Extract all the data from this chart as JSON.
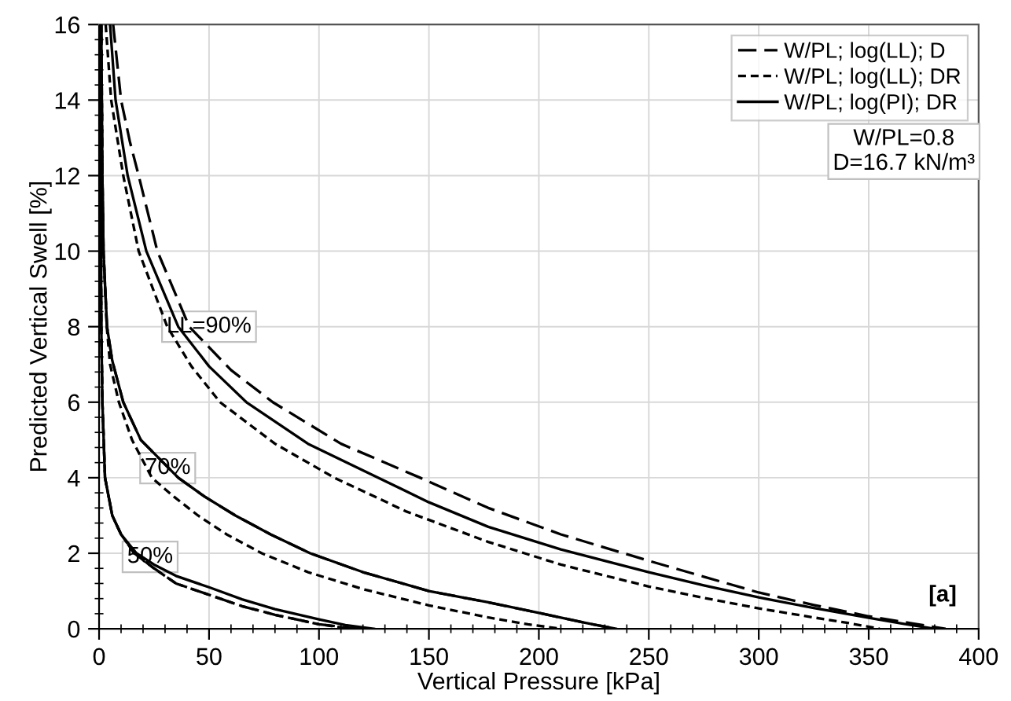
{
  "chart_data": {
    "type": "line",
    "xlabel": "Vertical Pressure [kPa]",
    "ylabel": "Predicted Vertical Swell [%]",
    "xlim": [
      0,
      400
    ],
    "ylim": [
      0,
      16
    ],
    "xticks": [
      0,
      50,
      100,
      150,
      200,
      250,
      300,
      350,
      400
    ],
    "yticks": [
      0,
      2,
      4,
      6,
      8,
      10,
      12,
      14,
      16
    ],
    "grid": true,
    "legend": "top right",
    "marker": "none",
    "series": [
      {
        "name": "W/PL; log(LL); D",
        "color": "#000000",
        "line_style": "dashed",
        "x": [
          6.4,
          10,
          14,
          18,
          26.5,
          41,
          60,
          79,
          110,
          146,
          177,
          210,
          250,
          275,
          300,
          325,
          350,
          370,
          385
        ],
        "values": [
          16,
          14,
          12.9,
          12,
          10,
          8,
          6.85,
          6,
          4.9,
          4,
          3.2,
          2.5,
          1.8,
          1.38,
          0.96,
          0.63,
          0.33,
          0.14,
          0
        ]
      },
      {
        "name": "W/PL; log(LL); DR",
        "color": "#000000",
        "line_style": "dotted",
        "x": [
          3,
          5.5,
          11,
          18,
          31,
          42,
          55,
          80,
          107,
          140,
          177,
          210,
          250,
          275,
          300,
          325,
          340,
          355
        ],
        "values": [
          16,
          14,
          12,
          10,
          8,
          6.95,
          6,
          4.9,
          4,
          3.1,
          2.3,
          1.7,
          1.12,
          0.82,
          0.54,
          0.3,
          0.16,
          0
        ]
      },
      {
        "name": "W/PL; log(PI); DR",
        "color": "#000000",
        "line_style": "solid",
        "x": [
          5,
          7.5,
          13,
          21.5,
          36,
          50,
          67,
          95,
          127,
          150,
          177,
          210,
          250,
          275,
          300,
          325,
          350,
          365,
          380
        ],
        "values": [
          16,
          14,
          12,
          10,
          8,
          6.95,
          6,
          4.9,
          4,
          3.35,
          2.7,
          2.1,
          1.5,
          1.15,
          0.83,
          0.55,
          0.29,
          0.14,
          0
        ]
      },
      {
        "color": "#000000",
        "line_style": "dashed",
        "x": [
          1,
          1.5,
          2,
          3.6,
          6,
          11,
          19,
          36,
          48,
          62,
          78,
          96,
          120,
          150,
          177,
          200,
          220,
          235
        ],
        "values": [
          16,
          12,
          10,
          8,
          7.1,
          6,
          5,
          4,
          3.5,
          3,
          2.5,
          2,
          1.5,
          1.0,
          0.7,
          0.42,
          0.17,
          0
        ]
      },
      {
        "color": "#000000",
        "line_style": "dotted",
        "x": [
          1,
          1.5,
          2,
          3.5,
          5,
          9,
          15,
          24,
          34,
          45,
          58,
          74,
          95,
          120,
          150,
          177,
          195,
          210
        ],
        "values": [
          16,
          12,
          10,
          8,
          7,
          6,
          5,
          4,
          3.5,
          3,
          2.5,
          2,
          1.5,
          1.05,
          0.62,
          0.3,
          0.12,
          0
        ]
      },
      {
        "color": "#000000",
        "line_style": "solid",
        "x": [
          1,
          1.5,
          2,
          3.6,
          6,
          11,
          19,
          36,
          48,
          62,
          78,
          96,
          120,
          150,
          177,
          200,
          220,
          235
        ],
        "values": [
          16,
          12,
          10,
          8,
          7.1,
          6,
          5,
          4,
          3.5,
          3,
          2.5,
          2,
          1.5,
          1.0,
          0.7,
          0.42,
          0.17,
          0
        ]
      },
      {
        "color": "#000000",
        "line_style": "dashed",
        "x": [
          0.5,
          0.7,
          1,
          1.5,
          2.7,
          6,
          10,
          16,
          25,
          35,
          50,
          65,
          80,
          100,
          118
        ],
        "values": [
          16,
          12,
          8,
          6,
          4,
          3,
          2.5,
          2,
          1.6,
          1.2,
          0.9,
          0.6,
          0.37,
          0.12,
          0
        ]
      },
      {
        "color": "#000000",
        "line_style": "dotted",
        "x": [
          0.5,
          0.7,
          1,
          1.5,
          2.7,
          6,
          10,
          16,
          25,
          35,
          50,
          65,
          80,
          100,
          115
        ],
        "values": [
          16,
          12,
          8,
          6,
          4,
          3,
          2.5,
          2,
          1.6,
          1.2,
          0.9,
          0.6,
          0.37,
          0.12,
          0
        ]
      },
      {
        "color": "#000000",
        "line_style": "solid",
        "x": [
          0.5,
          0.7,
          1,
          1.5,
          2.7,
          6,
          10,
          17,
          25,
          35,
          50,
          65,
          80,
          100,
          112,
          125
        ],
        "values": [
          16,
          12,
          8,
          6,
          4,
          3,
          2.5,
          2,
          1.7,
          1.4,
          1.1,
          0.78,
          0.52,
          0.25,
          0.1,
          0
        ]
      }
    ],
    "annotations": [
      "LL=90%",
      "70%",
      "50%",
      "W/PL=0.8\nD=16.7 kN/m³",
      "[a]"
    ]
  }
}
